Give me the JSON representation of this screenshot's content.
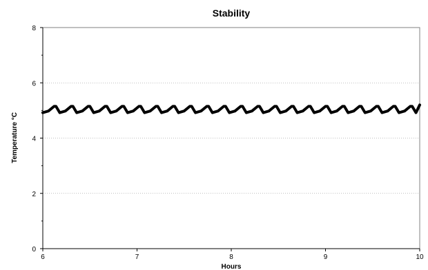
{
  "chart_data": {
    "type": "line",
    "title": "Stability",
    "xlabel": "Hours",
    "ylabel": "Temperature °C",
    "xlim": [
      6,
      10
    ],
    "ylim": [
      0,
      8
    ],
    "x_ticks": [
      6,
      7,
      8,
      9,
      10
    ],
    "y_ticks": [
      0,
      2,
      4,
      6,
      8
    ],
    "y_minor_step": 1,
    "grid": {
      "horizontal": true,
      "vertical": false
    },
    "legend": "none",
    "series": [
      {
        "color": "#000000",
        "x": [
          6.0,
          6.06,
          6.12,
          6.14,
          6.18,
          6.24,
          6.3,
          6.32,
          6.36,
          6.42,
          6.48,
          6.5,
          6.54,
          6.6,
          6.66,
          6.68,
          6.72,
          6.78,
          6.84,
          6.86,
          6.9,
          6.96,
          7.02,
          7.04,
          7.08,
          7.14,
          7.2,
          7.22,
          7.26,
          7.32,
          7.38,
          7.4,
          7.44,
          7.5,
          7.56,
          7.58,
          7.62,
          7.68,
          7.74,
          7.76,
          7.8,
          7.86,
          7.92,
          7.94,
          7.98,
          8.04,
          8.1,
          8.12,
          8.16,
          8.22,
          8.28,
          8.3,
          8.34,
          8.4,
          8.46,
          8.48,
          8.52,
          8.58,
          8.64,
          8.66,
          8.7,
          8.76,
          8.82,
          8.84,
          8.88,
          8.94,
          9.0,
          9.02,
          9.06,
          9.12,
          9.18,
          9.2,
          9.24,
          9.3,
          9.36,
          9.38,
          9.42,
          9.48,
          9.54,
          9.56,
          9.6,
          9.66,
          9.72,
          9.74,
          9.78,
          9.84,
          9.9,
          9.92,
          9.96,
          10.0
        ],
        "y": [
          4.92,
          4.98,
          5.15,
          5.15,
          4.92,
          4.98,
          5.15,
          5.15,
          4.92,
          4.98,
          5.15,
          5.15,
          4.92,
          4.98,
          5.15,
          5.15,
          4.92,
          4.98,
          5.15,
          5.15,
          4.92,
          4.98,
          5.15,
          5.15,
          4.92,
          4.98,
          5.15,
          5.15,
          4.92,
          4.98,
          5.15,
          5.15,
          4.92,
          4.98,
          5.15,
          5.15,
          4.92,
          4.98,
          5.15,
          5.15,
          4.92,
          4.98,
          5.15,
          5.15,
          4.92,
          4.98,
          5.15,
          5.15,
          4.92,
          4.98,
          5.15,
          5.15,
          4.92,
          4.98,
          5.15,
          5.15,
          4.92,
          4.98,
          5.15,
          5.15,
          4.92,
          4.98,
          5.15,
          5.15,
          4.92,
          4.98,
          5.15,
          5.15,
          4.92,
          4.98,
          5.15,
          5.15,
          4.92,
          4.98,
          5.15,
          5.15,
          4.92,
          4.98,
          5.15,
          5.15,
          4.92,
          4.98,
          5.15,
          5.15,
          4.92,
          4.98,
          5.15,
          5.15,
          4.92,
          5.2
        ]
      }
    ]
  }
}
